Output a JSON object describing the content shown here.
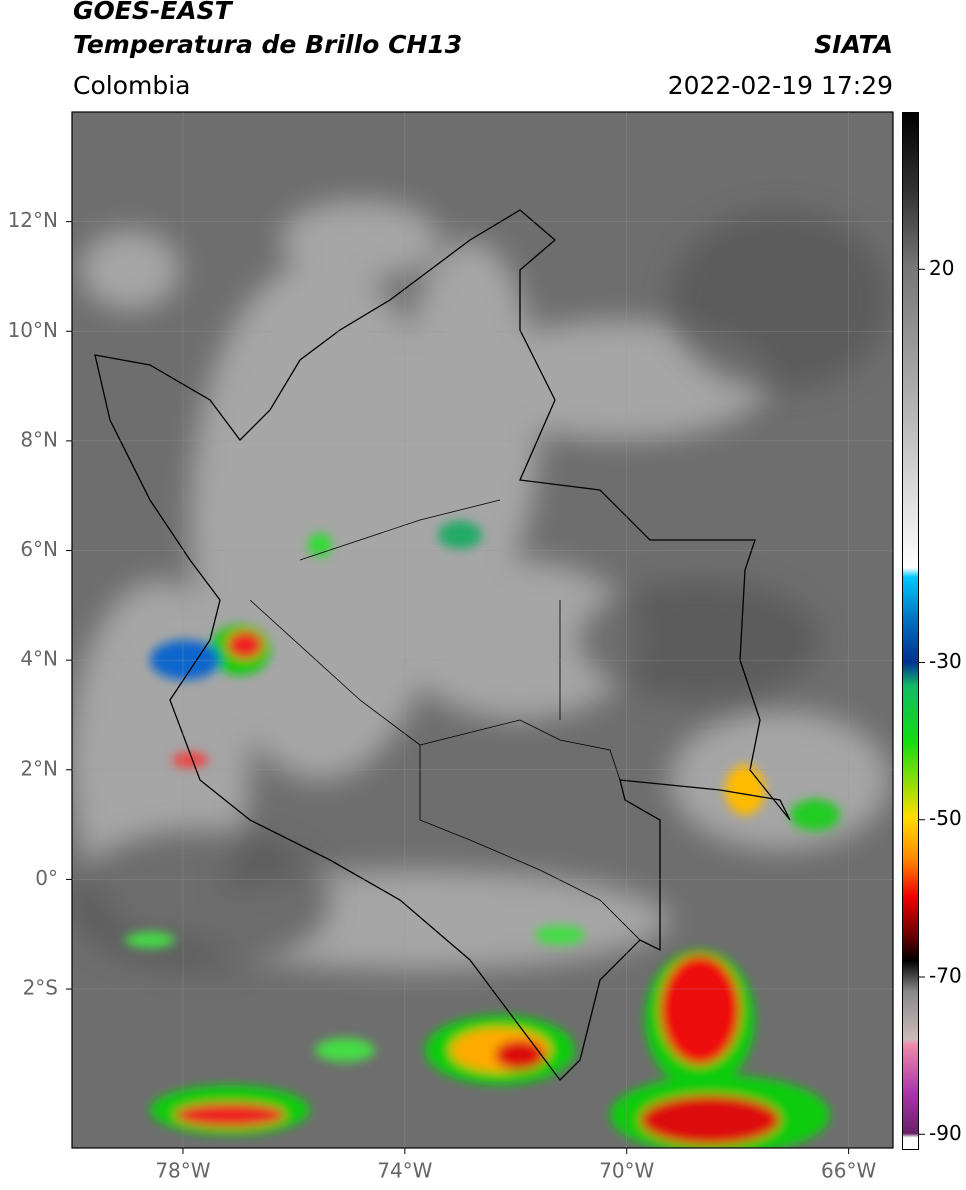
{
  "header": {
    "title": "GOES-EAST",
    "subtitle": "Temperatura de Brillo CH13",
    "source": "SIATA",
    "region": "Colombia",
    "datetime": "2022-02-19 17:29"
  },
  "map": {
    "xlim": [
      -80,
      -65.2
    ],
    "ylim": [
      -4.9,
      14
    ],
    "xticks": [
      {
        "value": -78,
        "label": "78°W"
      },
      {
        "value": -74,
        "label": "74°W"
      },
      {
        "value": -70,
        "label": "70°W"
      },
      {
        "value": -66,
        "label": "66°W"
      }
    ],
    "yticks": [
      {
        "value": 12,
        "label": "12°N"
      },
      {
        "value": 10,
        "label": "10°N"
      },
      {
        "value": 8,
        "label": "8°N"
      },
      {
        "value": 6,
        "label": "6°N"
      },
      {
        "value": 4,
        "label": "4°N"
      },
      {
        "value": 2,
        "label": "2°N"
      },
      {
        "value": 0,
        "label": "0°"
      },
      {
        "value": -2,
        "label": "2°S"
      }
    ]
  },
  "colorbar": {
    "lim": [
      -92,
      40
    ],
    "ticks": [
      20,
      -30,
      -50,
      -70,
      -90
    ]
  }
}
